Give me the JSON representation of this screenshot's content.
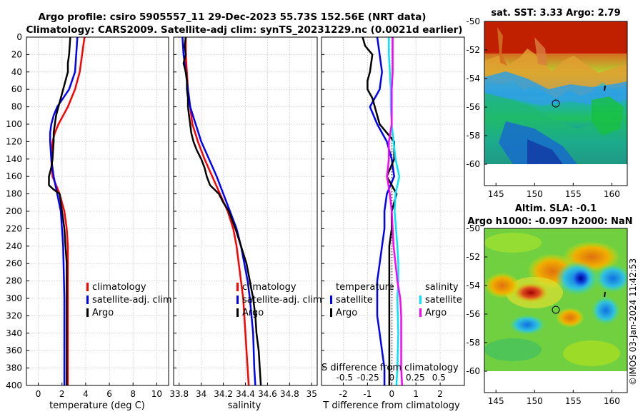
{
  "header": {
    "line1": "Argo profile: csiro 5905557_11 29-Dec-2023 55.73S 152.56E (NRT data)",
    "line2": "Climatology: CARS2009. Satellite-adj clim: synTS_20231229.nc (0.0021d earlier)"
  },
  "colors": {
    "climatology": "#ff0000",
    "satellite": "#0000ff",
    "argo": "#000000",
    "sat_salinity": "#00e5ff",
    "argo_salinity": "#ff00ff"
  },
  "chart_data": [
    {
      "type": "line",
      "name": "temperature-profile",
      "xlabel": "temperature (deg C)",
      "ylabel": "",
      "xlim": [
        -1,
        11
      ],
      "ylim": [
        400,
        0
      ],
      "xticks": [
        0,
        2,
        4,
        6,
        8,
        10
      ],
      "yticks": [
        0,
        20,
        40,
        60,
        80,
        100,
        120,
        140,
        160,
        180,
        200,
        220,
        240,
        260,
        280,
        300,
        320,
        340,
        360,
        380,
        400
      ],
      "grid": true,
      "legend_position": "lower-right",
      "series": [
        {
          "name": "climatology",
          "color": "#ff0000",
          "depth": [
            0,
            20,
            40,
            60,
            70,
            80,
            90,
            100,
            110,
            120,
            140,
            160,
            170,
            180,
            200,
            220,
            240,
            260,
            300,
            340,
            380,
            400
          ],
          "values": [
            3.9,
            3.7,
            3.5,
            3.1,
            2.8,
            2.5,
            2.1,
            1.7,
            1.4,
            1.2,
            1.1,
            1.2,
            1.5,
            1.8,
            2.2,
            2.4,
            2.5,
            2.5,
            2.5,
            2.5,
            2.5,
            2.5
          ]
        },
        {
          "name": "satellite-adj. clim",
          "color": "#0000ff",
          "depth": [
            0,
            20,
            40,
            60,
            70,
            80,
            90,
            100,
            110,
            120,
            140,
            160,
            180,
            200,
            240,
            300,
            340,
            380,
            400
          ],
          "values": [
            3.3,
            3.2,
            3.1,
            2.6,
            2.1,
            1.6,
            1.3,
            1.1,
            1.0,
            1.0,
            1.1,
            1.3,
            1.6,
            1.9,
            2.1,
            2.2,
            2.2,
            2.2,
            2.2
          ]
        },
        {
          "name": "Argo",
          "color": "#000000",
          "depth": [
            0,
            20,
            30,
            40,
            50,
            60,
            70,
            80,
            90,
            100,
            110,
            120,
            140,
            150,
            160,
            170,
            175,
            180,
            200,
            220,
            240,
            260,
            280,
            300,
            320,
            340,
            360,
            380,
            400
          ],
          "values": [
            2.7,
            2.6,
            2.5,
            2.5,
            2.3,
            2.1,
            1.9,
            1.7,
            1.5,
            1.4,
            1.3,
            1.3,
            1.2,
            1.1,
            0.9,
            0.9,
            1.3,
            1.8,
            2.0,
            2.2,
            2.3,
            2.4,
            2.4,
            2.4,
            2.4,
            2.4,
            2.4,
            2.4,
            2.4
          ]
        }
      ],
      "legend": [
        "climatology",
        "satellite-adj. clim",
        "Argo"
      ]
    },
    {
      "type": "line",
      "name": "salinity-profile",
      "xlabel": "salinity",
      "ylabel": "",
      "xlim": [
        33.75,
        35.05
      ],
      "ylim": [
        400,
        0
      ],
      "xticks": [
        33.8,
        34,
        34.2,
        34.4,
        34.6,
        34.8,
        35
      ],
      "xticklabels": [
        "33.8",
        "34",
        "34.2",
        "34.4",
        "34.6",
        "34.8",
        "35"
      ],
      "grid": true,
      "legend_position": "lower-right",
      "series": [
        {
          "name": "climatology",
          "color": "#ff0000",
          "depth": [
            0,
            20,
            40,
            60,
            80,
            100,
            120,
            140,
            160,
            180,
            200,
            220,
            240,
            260,
            280,
            300,
            340,
            380,
            400
          ],
          "values": [
            33.86,
            33.86,
            33.87,
            33.88,
            33.9,
            33.92,
            33.97,
            34.03,
            34.1,
            34.17,
            34.24,
            34.29,
            34.32,
            34.34,
            34.36,
            34.38,
            34.4,
            34.42,
            34.43
          ]
        },
        {
          "name": "satellite-adj. clim",
          "color": "#0000ff",
          "depth": [
            0,
            20,
            40,
            60,
            80,
            100,
            120,
            140,
            160,
            180,
            200,
            220,
            240,
            260,
            280,
            300,
            340,
            380,
            400
          ],
          "values": [
            33.83,
            33.84,
            33.86,
            33.88,
            33.9,
            33.95,
            34.0,
            34.07,
            34.14,
            34.2,
            34.26,
            34.32,
            34.36,
            34.39,
            34.42,
            34.44,
            34.47,
            34.48,
            34.49
          ]
        },
        {
          "name": "Argo",
          "color": "#000000",
          "depth": [
            0,
            10,
            20,
            30,
            40,
            50,
            60,
            70,
            80,
            90,
            100,
            110,
            120,
            130,
            140,
            150,
            160,
            170,
            175,
            180,
            190,
            200,
            220,
            240,
            260,
            280,
            300,
            320,
            340,
            360,
            380,
            400
          ],
          "values": [
            33.86,
            33.85,
            33.86,
            33.84,
            33.86,
            33.87,
            33.87,
            33.88,
            33.88,
            33.89,
            33.9,
            33.91,
            33.93,
            33.96,
            34.0,
            34.03,
            34.05,
            34.08,
            34.12,
            34.16,
            34.2,
            34.25,
            34.31,
            34.36,
            34.41,
            34.44,
            34.47,
            34.49,
            34.5,
            34.52,
            34.53,
            34.54
          ]
        }
      ],
      "legend": [
        "climatology",
        "satellite-adj. clim",
        "Argo"
      ]
    },
    {
      "type": "line",
      "name": "difference-profile",
      "xlabel": "T difference from climatology",
      "secondary_xlabel": "S difference from climatology",
      "xlim": [
        -2.9,
        3.0
      ],
      "ylim": [
        400,
        0
      ],
      "xticks": [
        -2,
        -1,
        0,
        1,
        2
      ],
      "s_ticks": [
        -0.5,
        -0.25,
        0,
        0.25,
        0.5
      ],
      "s_ticklabels": [
        "-0.5",
        "-0.25",
        "0",
        "0.25",
        "0.5"
      ],
      "grid": true,
      "legend_temperature_title": "temperature",
      "legend_salinity_title": "salinity",
      "legend": {
        "temperature": [
          "satellite",
          "Argo"
        ],
        "salinity": [
          "satellite",
          "Argo"
        ]
      },
      "series": [
        {
          "name": "T satellite",
          "color": "#0000ff",
          "depth": [
            0,
            20,
            40,
            60,
            80,
            100,
            120,
            140,
            160,
            180,
            200,
            220,
            240,
            260,
            280,
            300,
            320,
            340,
            360,
            380,
            400
          ],
          "values": [
            -0.6,
            -0.5,
            -0.4,
            -0.5,
            -0.9,
            -0.6,
            -0.2,
            0.0,
            0.1,
            -0.2,
            -0.3,
            -0.3,
            -0.4,
            -0.5,
            -0.6,
            -0.6,
            -0.6,
            -0.5,
            -0.4,
            -0.3,
            -0.3
          ]
        },
        {
          "name": "T Argo",
          "color": "#000000",
          "depth": [
            0,
            10,
            20,
            40,
            50,
            60,
            70,
            80,
            90,
            100,
            110,
            120,
            140,
            160,
            180,
            200,
            220,
            240,
            260,
            280,
            300,
            320,
            340,
            360,
            380,
            400
          ],
          "values": [
            -1.2,
            -1.1,
            -0.8,
            -0.9,
            -1.0,
            -1.0,
            -0.8,
            -0.7,
            -0.6,
            -0.5,
            -0.2,
            0.1,
            0.1,
            -0.2,
            0.2,
            0.0,
            0.0,
            -0.1,
            -0.1,
            -0.1,
            -0.1,
            -0.1,
            -0.1,
            -0.1,
            -0.1,
            -0.1
          ]
        },
        {
          "name": "S satellite",
          "color": "#00e5ff",
          "depth": [
            0,
            20,
            40,
            60,
            80,
            100,
            120,
            140,
            160,
            180,
            200,
            240,
            260,
            280,
            300,
            340,
            380,
            400
          ],
          "values": [
            -0.03,
            -0.03,
            -0.02,
            -0.01,
            -0.01,
            0.0,
            0.02,
            0.04,
            0.08,
            0.04,
            0.03,
            0.06,
            0.07,
            0.07,
            0.06,
            0.07,
            0.06,
            0.05
          ]
        },
        {
          "name": "S Argo",
          "color": "#ff00ff",
          "depth": [
            0,
            20,
            40,
            60,
            80,
            100,
            120,
            140,
            160,
            180,
            200,
            240,
            260,
            280,
            300,
            320,
            340,
            360,
            380,
            400
          ],
          "values": [
            0.01,
            0.01,
            0.01,
            0.0,
            0.0,
            0.0,
            -0.03,
            -0.03,
            -0.05,
            -0.02,
            0.0,
            0.02,
            0.04,
            0.06,
            0.09,
            0.1,
            0.1,
            0.1,
            0.1,
            0.11
          ]
        }
      ]
    },
    {
      "type": "heatmap",
      "name": "sst-map",
      "title": "sat. SST: 3.33 Argo: 2.79",
      "xlim": [
        143.5,
        162
      ],
      "ylim": [
        -60,
        -50
      ],
      "xticks": [
        145,
        150,
        155,
        160
      ],
      "yticks": [
        -50,
        -52,
        -54,
        -56,
        -58,
        -60
      ],
      "argo_position": [
        152.56,
        -55.73
      ]
    },
    {
      "type": "heatmap",
      "name": "sla-map",
      "title1": "Altim. SLA: -0.1",
      "title2": "Argo h1000: -0.097 h2000: NaN",
      "xlim": [
        143.5,
        162
      ],
      "ylim": [
        -60,
        -50
      ],
      "xticks": [
        145,
        150,
        155,
        160
      ],
      "yticks": [
        -50,
        -52,
        -54,
        -56,
        -58,
        -60
      ],
      "argo_position": [
        152.56,
        -55.73
      ]
    }
  ],
  "credit": "©IMOS 03-Jan-2024 11:42:53"
}
